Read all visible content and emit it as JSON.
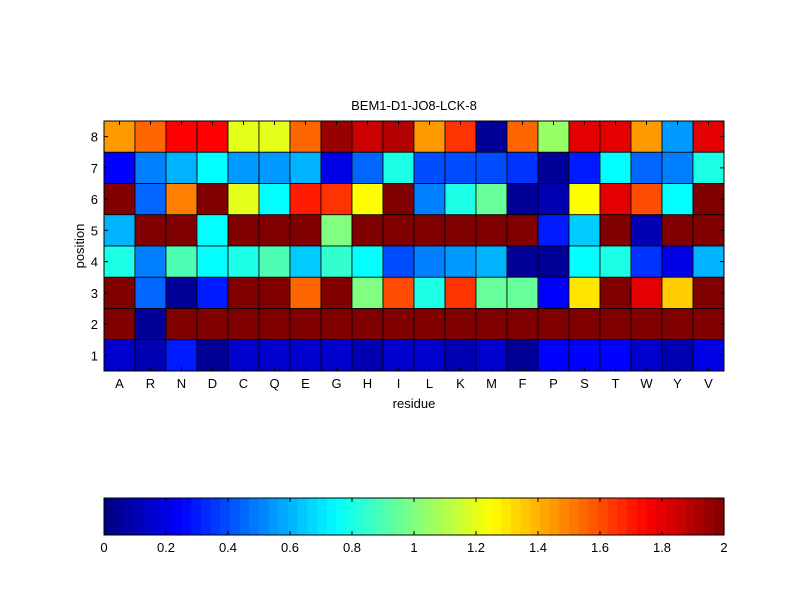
{
  "chart_data": {
    "type": "heatmap",
    "title": "BEM1-D1-JO8-LCK-8",
    "xlabel": "residue",
    "ylabel": "position",
    "x_categories": [
      "A",
      "R",
      "N",
      "D",
      "C",
      "Q",
      "E",
      "G",
      "H",
      "I",
      "L",
      "K",
      "M",
      "F",
      "P",
      "S",
      "T",
      "W",
      "Y",
      "V"
    ],
    "y_categories": [
      "8",
      "7",
      "6",
      "5",
      "4",
      "3",
      "2",
      "1"
    ],
    "values": [
      [
        1.45,
        1.55,
        1.75,
        1.75,
        1.2,
        1.2,
        1.55,
        1.95,
        1.85,
        1.9,
        1.45,
        1.65,
        0.05,
        1.55,
        1.05,
        1.8,
        1.8,
        1.45,
        0.55,
        1.8
      ],
      [
        0.25,
        0.5,
        0.6,
        0.75,
        0.55,
        0.55,
        0.6,
        0.2,
        0.45,
        0.8,
        0.4,
        0.4,
        0.4,
        0.35,
        0.05,
        0.3,
        0.75,
        0.45,
        0.5,
        0.8
      ],
      [
        2.0,
        0.45,
        1.5,
        2.0,
        1.2,
        0.75,
        1.7,
        1.65,
        1.25,
        2.0,
        0.5,
        0.8,
        0.95,
        0.05,
        0.1,
        1.25,
        1.8,
        1.6,
        0.75,
        2.0
      ],
      [
        0.6,
        2.0,
        2.0,
        0.75,
        2.0,
        2.0,
        2.0,
        1.0,
        2.0,
        2.0,
        2.0,
        2.0,
        2.0,
        2.0,
        0.3,
        0.65,
        2.0,
        0.1,
        2.0,
        2.0
      ],
      [
        0.8,
        0.5,
        0.9,
        0.75,
        0.8,
        0.9,
        0.65,
        0.85,
        0.75,
        0.4,
        0.5,
        0.55,
        0.6,
        0.05,
        0.05,
        0.75,
        0.8,
        0.35,
        0.2,
        0.6
      ],
      [
        2.0,
        0.45,
        0.05,
        0.3,
        2.0,
        2.0,
        1.55,
        2.0,
        1.0,
        1.6,
        0.8,
        1.65,
        0.95,
        0.95,
        0.25,
        1.3,
        2.0,
        1.8,
        1.35,
        2.0
      ],
      [
        2.0,
        0.05,
        2.0,
        2.0,
        2.0,
        2.0,
        2.0,
        2.0,
        2.0,
        2.0,
        2.0,
        2.0,
        2.0,
        2.0,
        2.0,
        2.0,
        2.0,
        2.0,
        2.0,
        2.0
      ],
      [
        0.15,
        0.1,
        0.3,
        0.05,
        0.15,
        0.15,
        0.15,
        0.15,
        0.1,
        0.15,
        0.15,
        0.1,
        0.15,
        0.05,
        0.25,
        0.25,
        0.25,
        0.15,
        0.1,
        0.2
      ]
    ],
    "colorbar": {
      "min": 0,
      "max": 2,
      "ticks": [
        "0",
        "0.2",
        "0.4",
        "0.6",
        "0.8",
        "1",
        "1.2",
        "1.4",
        "1.6",
        "1.8",
        "2"
      ]
    },
    "colormap": "jet",
    "grid": false,
    "legend": "colorbar-bottom"
  }
}
